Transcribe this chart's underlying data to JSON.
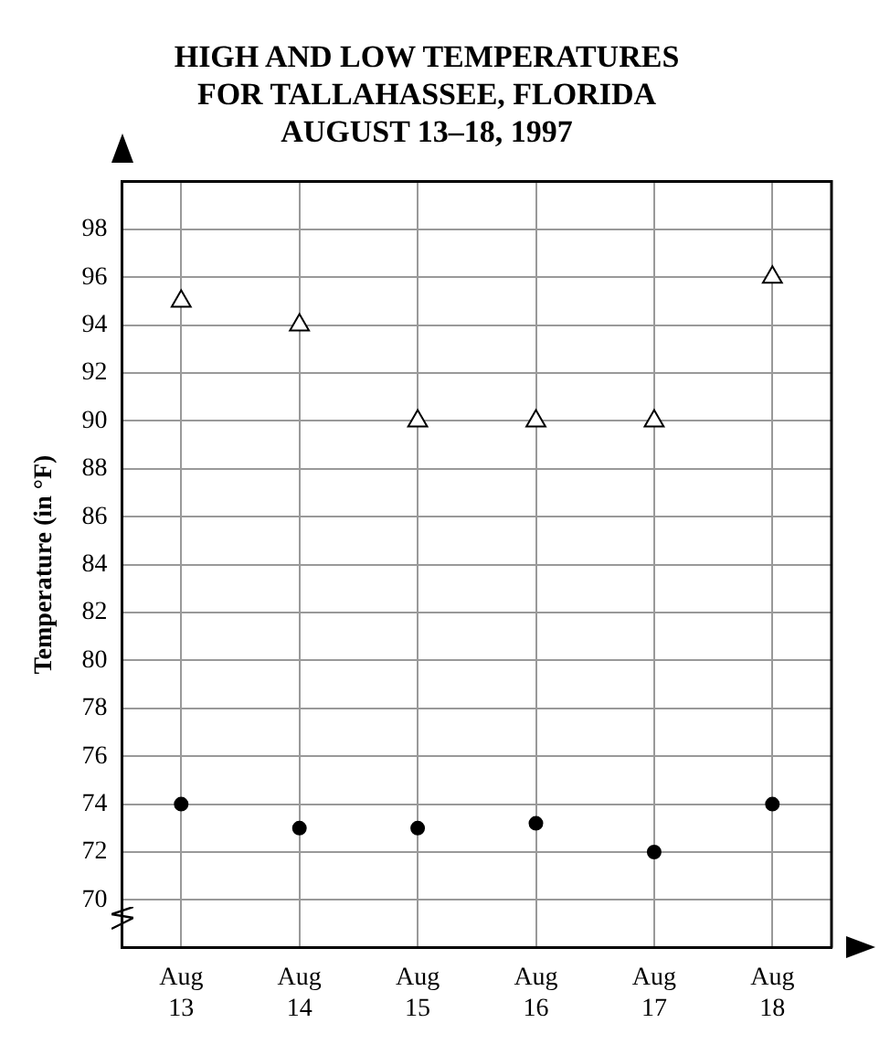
{
  "chart_data": {
    "type": "scatter",
    "title": "HIGH AND LOW TEMPERATURES\nFOR TALLAHASSEE, FLORIDA\nAUGUST 13–18, 1997",
    "ylabel": "Temperature (in °F)",
    "categories": [
      "Aug 13",
      "Aug 14",
      "Aug 15",
      "Aug 16",
      "Aug 17",
      "Aug 18"
    ],
    "series": [
      {
        "color": "#000000",
        "marker": "triangle",
        "values": [
          95,
          94,
          90,
          90,
          90,
          96
        ]
      },
      {
        "color": "#000000",
        "marker": "circle",
        "values": [
          74,
          73,
          73,
          73.2,
          72,
          74
        ]
      }
    ],
    "ylim": [
      68,
      100
    ],
    "yticks": [
      70,
      72,
      74,
      76,
      78,
      80,
      82,
      84,
      86,
      88,
      90,
      92,
      94,
      96,
      98
    ],
    "grid": true,
    "legend": false
  }
}
